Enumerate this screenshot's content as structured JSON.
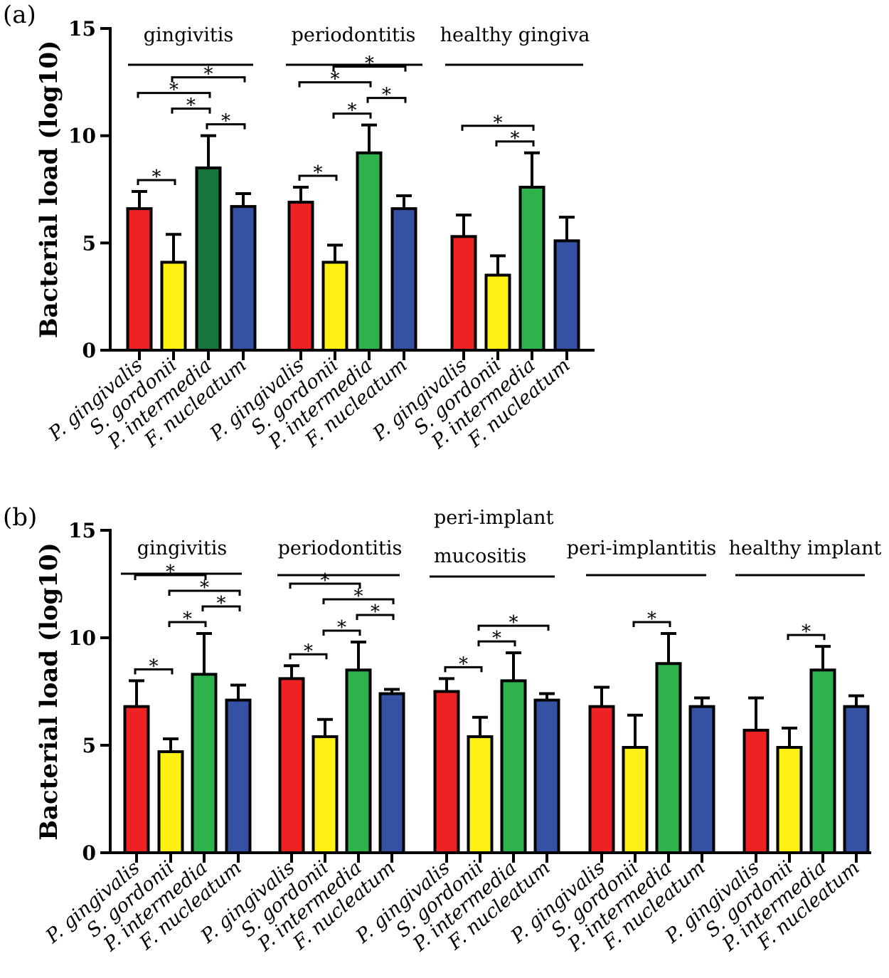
{
  "chart_data": [
    {
      "type": "bar",
      "panel_label": "(a)",
      "ylabel": "Bacterial load (log10)",
      "ylim": [
        0,
        15
      ],
      "yticks": [
        0,
        5,
        10,
        15
      ],
      "categories": [
        "P. gingivalis",
        "S. gordonii",
        "P. intermedia",
        "F. nucleatum"
      ],
      "groups": [
        {
          "label": "gingivitis",
          "values": [
            6.6,
            4.1,
            8.5,
            6.7
          ],
          "errors": [
            0.8,
            1.3,
            1.5,
            0.6
          ],
          "colors": [
            "#ee2222",
            "#fff013",
            "#18753a",
            "#3451a4"
          ],
          "brackets": [
            {
              "from": 0,
              "to": 1,
              "label": "*"
            },
            {
              "from": 2,
              "to": 3,
              "label": "*"
            },
            {
              "from": 1,
              "to": 2,
              "label": "*"
            },
            {
              "from": 0,
              "to": 2,
              "label": "*"
            },
            {
              "from": 1,
              "to": 3,
              "label": "*"
            }
          ]
        },
        {
          "label": "periodontitis",
          "values": [
            6.9,
            4.1,
            9.2,
            6.6
          ],
          "errors": [
            0.7,
            0.8,
            1.3,
            0.6
          ],
          "colors": [
            "#ee2222",
            "#fff013",
            "#2eb24b",
            "#3451a4"
          ],
          "brackets": [
            {
              "from": 0,
              "to": 1,
              "label": "*"
            },
            {
              "from": 1,
              "to": 2,
              "label": "*"
            },
            {
              "from": 2,
              "to": 3,
              "label": "*"
            },
            {
              "from": 0,
              "to": 2,
              "label": "*"
            },
            {
              "from": 1,
              "to": 3,
              "label": "*"
            }
          ]
        },
        {
          "label": "healthy gingiva",
          "values": [
            5.3,
            3.5,
            7.6,
            5.1
          ],
          "errors": [
            1.0,
            0.9,
            1.6,
            1.1
          ],
          "colors": [
            "#ee2222",
            "#fff013",
            "#2eb24b",
            "#3451a4"
          ],
          "brackets": [
            {
              "from": 1,
              "to": 2,
              "label": "*"
            },
            {
              "from": 0,
              "to": 2,
              "label": "*"
            }
          ]
        }
      ]
    },
    {
      "type": "bar",
      "panel_label": "(b)",
      "ylabel": "Bacterial load (log10)",
      "ylim": [
        0,
        15
      ],
      "yticks": [
        0,
        5,
        10,
        15
      ],
      "categories": [
        "P. gingivalis",
        "S. gordonii",
        "P. intermedia",
        "F. nucleatum"
      ],
      "groups": [
        {
          "label": "gingivitis",
          "values": [
            6.8,
            4.7,
            8.3,
            7.1
          ],
          "errors": [
            1.2,
            0.6,
            1.9,
            0.7
          ],
          "colors": [
            "#ee2222",
            "#fff013",
            "#2eb24b",
            "#3451a4"
          ],
          "brackets": [
            {
              "from": 0,
              "to": 1,
              "label": "*"
            },
            {
              "from": 1,
              "to": 2,
              "label": "*"
            },
            {
              "from": 2,
              "to": 3,
              "label": "*"
            },
            {
              "from": 1,
              "to": 3,
              "label": "*"
            },
            {
              "from": 0,
              "to": 2,
              "label": "*"
            }
          ]
        },
        {
          "label": "periodontitis",
          "values": [
            8.1,
            5.4,
            8.5,
            7.4
          ],
          "errors": [
            0.6,
            0.8,
            1.3,
            0.2
          ],
          "colors": [
            "#ee2222",
            "#fff013",
            "#2eb24b",
            "#3451a4"
          ],
          "brackets": [
            {
              "from": 0,
              "to": 1,
              "label": "*"
            },
            {
              "from": 1,
              "to": 2,
              "label": "*"
            },
            {
              "from": 2,
              "to": 3,
              "label": "*"
            },
            {
              "from": 1,
              "to": 3,
              "label": "*"
            },
            {
              "from": 0,
              "to": 2,
              "label": "*"
            }
          ]
        },
        {
          "label": "peri-implant mucositis",
          "label_lines": [
            "peri-implant",
            "mucositis"
          ],
          "values": [
            7.5,
            5.4,
            8.0,
            7.1
          ],
          "errors": [
            0.6,
            0.9,
            1.3,
            0.3
          ],
          "colors": [
            "#ee2222",
            "#fff013",
            "#2eb24b",
            "#3451a4"
          ],
          "brackets": [
            {
              "from": 0,
              "to": 1,
              "label": "*"
            },
            {
              "from": 1,
              "to": 2,
              "label": "*"
            },
            {
              "from": 1,
              "to": 3,
              "label": "*"
            }
          ]
        },
        {
          "label": "peri-implantitis",
          "values": [
            6.8,
            4.9,
            8.8,
            6.8
          ],
          "errors": [
            0.9,
            1.5,
            1.4,
            0.4
          ],
          "colors": [
            "#ee2222",
            "#fff013",
            "#2eb24b",
            "#3451a4"
          ],
          "brackets": [
            {
              "from": 1,
              "to": 2,
              "label": "*"
            }
          ]
        },
        {
          "label": "healthy implant",
          "values": [
            5.7,
            4.9,
            8.5,
            6.8
          ],
          "errors": [
            1.5,
            0.9,
            1.1,
            0.5
          ],
          "colors": [
            "#ee2222",
            "#fff013",
            "#2eb24b",
            "#3451a4"
          ],
          "brackets": [
            {
              "from": 1,
              "to": 2,
              "label": "*"
            }
          ]
        }
      ]
    }
  ]
}
